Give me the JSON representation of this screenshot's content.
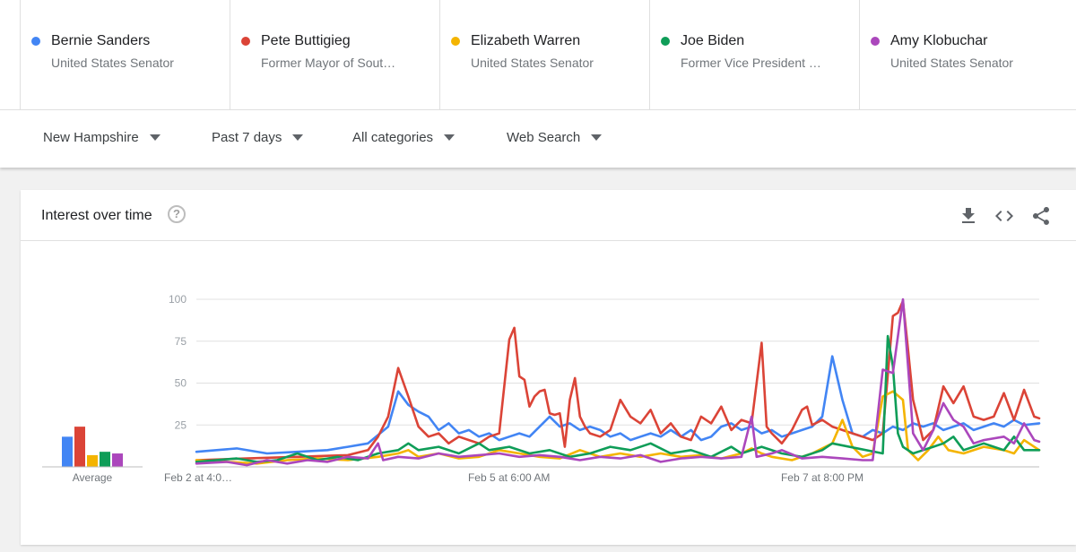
{
  "terms": [
    {
      "name": "Bernie Sanders",
      "sub": "United States Senator",
      "color": "#4285f4"
    },
    {
      "name": "Pete Buttigieg",
      "sub": "Former Mayor of Sout…",
      "color": "#db4437"
    },
    {
      "name": "Elizabeth Warren",
      "sub": "United States Senator",
      "color": "#f4b400"
    },
    {
      "name": "Joe Biden",
      "sub": "Former Vice President …",
      "color": "#0f9d58"
    },
    {
      "name": "Amy Klobuchar",
      "sub": "United States Senator",
      "color": "#ab47bc"
    }
  ],
  "filters": {
    "region": "New Hampshire",
    "time": "Past 7 days",
    "category": "All categories",
    "search_type": "Web Search"
  },
  "card": {
    "title": "Interest over time",
    "help_glyph": "?",
    "icons": [
      "download-icon",
      "embed-code-icon",
      "share-icon"
    ]
  },
  "chart_data": {
    "type": "line",
    "title": "Interest over time",
    "ylim": [
      0,
      100
    ],
    "y_ticks": [
      "100",
      "75",
      "50",
      "25"
    ],
    "x_tick_labels": [
      "Feb 2 at 4:0…",
      "Feb 5 at 6:00 AM",
      "Feb 7 at 8:00 PM"
    ],
    "x_tick_positions": [
      0,
      62,
      124
    ],
    "n_points": 168,
    "grid": true,
    "average_label": "Average",
    "averages": [
      18,
      24,
      7,
      9,
      8
    ],
    "series": [
      {
        "name": "Bernie Sanders",
        "color": "#4285f4",
        "points": [
          [
            0,
            9
          ],
          [
            8,
            11
          ],
          [
            14,
            8
          ],
          [
            20,
            9
          ],
          [
            26,
            10
          ],
          [
            30,
            12
          ],
          [
            34,
            14
          ],
          [
            38,
            24
          ],
          [
            40,
            45
          ],
          [
            42,
            37
          ],
          [
            44,
            33
          ],
          [
            46,
            30
          ],
          [
            48,
            22
          ],
          [
            50,
            26
          ],
          [
            52,
            20
          ],
          [
            54,
            22
          ],
          [
            56,
            18
          ],
          [
            58,
            20
          ],
          [
            60,
            16
          ],
          [
            62,
            18
          ],
          [
            64,
            20
          ],
          [
            66,
            18
          ],
          [
            68,
            24
          ],
          [
            70,
            30
          ],
          [
            72,
            24
          ],
          [
            74,
            26
          ],
          [
            76,
            22
          ],
          [
            78,
            24
          ],
          [
            80,
            22
          ],
          [
            82,
            18
          ],
          [
            84,
            20
          ],
          [
            86,
            16
          ],
          [
            88,
            18
          ],
          [
            90,
            20
          ],
          [
            92,
            18
          ],
          [
            94,
            22
          ],
          [
            96,
            18
          ],
          [
            98,
            22
          ],
          [
            100,
            16
          ],
          [
            102,
            18
          ],
          [
            104,
            24
          ],
          [
            106,
            26
          ],
          [
            108,
            22
          ],
          [
            110,
            24
          ],
          [
            112,
            20
          ],
          [
            114,
            22
          ],
          [
            116,
            18
          ],
          [
            118,
            20
          ],
          [
            120,
            22
          ],
          [
            122,
            24
          ],
          [
            124,
            30
          ],
          [
            126,
            66
          ],
          [
            128,
            40
          ],
          [
            130,
            20
          ],
          [
            132,
            18
          ],
          [
            134,
            22
          ],
          [
            136,
            20
          ],
          [
            138,
            24
          ],
          [
            140,
            22
          ],
          [
            142,
            26
          ],
          [
            144,
            24
          ],
          [
            146,
            26
          ],
          [
            148,
            22
          ],
          [
            150,
            24
          ],
          [
            152,
            26
          ],
          [
            154,
            22
          ],
          [
            156,
            24
          ],
          [
            158,
            26
          ],
          [
            160,
            24
          ],
          [
            162,
            28
          ],
          [
            164,
            25
          ],
          [
            167,
            26
          ]
        ]
      },
      {
        "name": "Pete Buttigieg",
        "color": "#db4437",
        "points": [
          [
            0,
            4
          ],
          [
            10,
            5
          ],
          [
            20,
            6
          ],
          [
            30,
            7
          ],
          [
            34,
            10
          ],
          [
            36,
            18
          ],
          [
            38,
            30
          ],
          [
            40,
            59
          ],
          [
            42,
            42
          ],
          [
            44,
            24
          ],
          [
            46,
            18
          ],
          [
            48,
            20
          ],
          [
            50,
            14
          ],
          [
            52,
            18
          ],
          [
            54,
            16
          ],
          [
            56,
            14
          ],
          [
            58,
            18
          ],
          [
            60,
            20
          ],
          [
            62,
            76
          ],
          [
            63,
            83
          ],
          [
            64,
            54
          ],
          [
            65,
            52
          ],
          [
            66,
            36
          ],
          [
            67,
            42
          ],
          [
            68,
            45
          ],
          [
            69,
            46
          ],
          [
            70,
            32
          ],
          [
            71,
            31
          ],
          [
            72,
            32
          ],
          [
            73,
            12
          ],
          [
            74,
            40
          ],
          [
            75,
            53
          ],
          [
            76,
            30
          ],
          [
            77,
            24
          ],
          [
            78,
            20
          ],
          [
            80,
            18
          ],
          [
            82,
            22
          ],
          [
            84,
            40
          ],
          [
            86,
            30
          ],
          [
            88,
            26
          ],
          [
            90,
            34
          ],
          [
            92,
            20
          ],
          [
            94,
            26
          ],
          [
            96,
            18
          ],
          [
            98,
            16
          ],
          [
            100,
            30
          ],
          [
            102,
            26
          ],
          [
            104,
            36
          ],
          [
            106,
            22
          ],
          [
            108,
            28
          ],
          [
            110,
            26
          ],
          [
            112,
            74
          ],
          [
            113,
            24
          ],
          [
            114,
            20
          ],
          [
            116,
            14
          ],
          [
            118,
            22
          ],
          [
            120,
            34
          ],
          [
            121,
            36
          ],
          [
            122,
            25
          ],
          [
            124,
            28
          ],
          [
            126,
            24
          ],
          [
            128,
            22
          ],
          [
            130,
            20
          ],
          [
            132,
            18
          ],
          [
            134,
            16
          ],
          [
            136,
            20
          ],
          [
            138,
            90
          ],
          [
            139,
            92
          ],
          [
            140,
            99
          ],
          [
            141,
            70
          ],
          [
            142,
            40
          ],
          [
            144,
            16
          ],
          [
            146,
            22
          ],
          [
            148,
            48
          ],
          [
            150,
            38
          ],
          [
            152,
            48
          ],
          [
            154,
            30
          ],
          [
            156,
            28
          ],
          [
            158,
            30
          ],
          [
            160,
            44
          ],
          [
            162,
            28
          ],
          [
            164,
            46
          ],
          [
            166,
            30
          ],
          [
            167,
            29
          ]
        ]
      },
      {
        "name": "Elizabeth Warren",
        "color": "#f4b400",
        "points": [
          [
            0,
            4
          ],
          [
            6,
            3
          ],
          [
            12,
            2
          ],
          [
            18,
            4
          ],
          [
            24,
            5
          ],
          [
            30,
            4
          ],
          [
            36,
            6
          ],
          [
            40,
            8
          ],
          [
            42,
            10
          ],
          [
            44,
            6
          ],
          [
            48,
            8
          ],
          [
            52,
            5
          ],
          [
            56,
            6
          ],
          [
            60,
            10
          ],
          [
            64,
            8
          ],
          [
            68,
            6
          ],
          [
            72,
            5
          ],
          [
            76,
            10
          ],
          [
            80,
            6
          ],
          [
            84,
            8
          ],
          [
            88,
            6
          ],
          [
            92,
            8
          ],
          [
            96,
            6
          ],
          [
            100,
            7
          ],
          [
            104,
            5
          ],
          [
            108,
            8
          ],
          [
            110,
            11
          ],
          [
            112,
            8
          ],
          [
            114,
            6
          ],
          [
            118,
            4
          ],
          [
            122,
            8
          ],
          [
            126,
            14
          ],
          [
            128,
            28
          ],
          [
            130,
            12
          ],
          [
            132,
            6
          ],
          [
            134,
            8
          ],
          [
            136,
            42
          ],
          [
            138,
            45
          ],
          [
            140,
            40
          ],
          [
            141,
            10
          ],
          [
            143,
            4
          ],
          [
            145,
            10
          ],
          [
            147,
            18
          ],
          [
            149,
            10
          ],
          [
            152,
            8
          ],
          [
            156,
            12
          ],
          [
            160,
            10
          ],
          [
            162,
            8
          ],
          [
            164,
            16
          ],
          [
            167,
            10
          ]
        ]
      },
      {
        "name": "Joe Biden",
        "color": "#0f9d58",
        "points": [
          [
            0,
            3
          ],
          [
            8,
            5
          ],
          [
            12,
            3
          ],
          [
            16,
            4
          ],
          [
            20,
            8
          ],
          [
            24,
            4
          ],
          [
            28,
            6
          ],
          [
            32,
            4
          ],
          [
            36,
            8
          ],
          [
            40,
            10
          ],
          [
            42,
            14
          ],
          [
            44,
            10
          ],
          [
            48,
            12
          ],
          [
            52,
            8
          ],
          [
            56,
            14
          ],
          [
            58,
            10
          ],
          [
            62,
            12
          ],
          [
            66,
            8
          ],
          [
            70,
            10
          ],
          [
            74,
            6
          ],
          [
            78,
            8
          ],
          [
            82,
            12
          ],
          [
            86,
            10
          ],
          [
            90,
            14
          ],
          [
            94,
            8
          ],
          [
            98,
            10
          ],
          [
            102,
            6
          ],
          [
            106,
            12
          ],
          [
            108,
            8
          ],
          [
            110,
            10
          ],
          [
            112,
            12
          ],
          [
            116,
            8
          ],
          [
            120,
            6
          ],
          [
            124,
            10
          ],
          [
            126,
            14
          ],
          [
            136,
            8
          ],
          [
            137,
            78
          ],
          [
            138,
            60
          ],
          [
            139,
            20
          ],
          [
            140,
            12
          ],
          [
            142,
            8
          ],
          [
            144,
            10
          ],
          [
            146,
            12
          ],
          [
            148,
            14
          ],
          [
            150,
            18
          ],
          [
            152,
            10
          ],
          [
            156,
            14
          ],
          [
            160,
            10
          ],
          [
            162,
            18
          ],
          [
            164,
            10
          ],
          [
            167,
            10
          ]
        ]
      },
      {
        "name": "Amy Klobuchar",
        "color": "#ab47bc",
        "points": [
          [
            0,
            2
          ],
          [
            6,
            3
          ],
          [
            10,
            1
          ],
          [
            14,
            4
          ],
          [
            18,
            2
          ],
          [
            22,
            4
          ],
          [
            26,
            3
          ],
          [
            30,
            6
          ],
          [
            34,
            5
          ],
          [
            36,
            14
          ],
          [
            37,
            4
          ],
          [
            40,
            6
          ],
          [
            44,
            5
          ],
          [
            48,
            8
          ],
          [
            52,
            6
          ],
          [
            56,
            7
          ],
          [
            60,
            8
          ],
          [
            64,
            6
          ],
          [
            68,
            7
          ],
          [
            72,
            6
          ],
          [
            76,
            4
          ],
          [
            80,
            6
          ],
          [
            84,
            5
          ],
          [
            88,
            7
          ],
          [
            92,
            3
          ],
          [
            96,
            5
          ],
          [
            100,
            6
          ],
          [
            104,
            5
          ],
          [
            108,
            6
          ],
          [
            110,
            30
          ],
          [
            111,
            6
          ],
          [
            114,
            8
          ],
          [
            116,
            10
          ],
          [
            120,
            5
          ],
          [
            124,
            6
          ],
          [
            128,
            5
          ],
          [
            132,
            4
          ],
          [
            134,
            4
          ],
          [
            136,
            58
          ],
          [
            138,
            56
          ],
          [
            140,
            100
          ],
          [
            141,
            60
          ],
          [
            142,
            20
          ],
          [
            144,
            10
          ],
          [
            146,
            22
          ],
          [
            148,
            38
          ],
          [
            150,
            28
          ],
          [
            152,
            24
          ],
          [
            154,
            14
          ],
          [
            156,
            16
          ],
          [
            160,
            18
          ],
          [
            162,
            14
          ],
          [
            164,
            26
          ],
          [
            166,
            16
          ],
          [
            167,
            15
          ]
        ]
      }
    ]
  }
}
